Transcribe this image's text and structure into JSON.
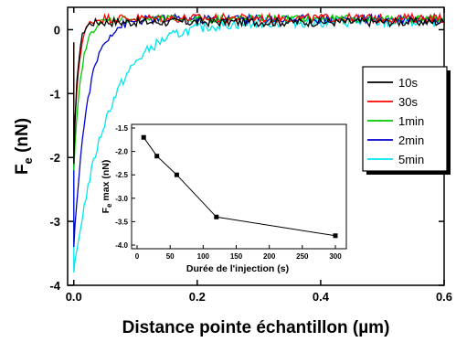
{
  "chart_data": [
    {
      "type": "line",
      "xlabel": "Distance pointe échantillon (µm)",
      "ylabel": {
        "main": "F",
        "sub": "e",
        "unit": " (nN)"
      },
      "xlim": [
        -0.01,
        0.6
      ],
      "ylim": [
        -4,
        0.35
      ],
      "x_ticks": [
        0.0,
        0.2,
        0.4,
        0.6
      ],
      "x_tick_labels": [
        "0.0",
        "0.2",
        "0.4",
        "0.6"
      ],
      "y_ticks": [
        0,
        -1,
        -2,
        -3,
        -4
      ],
      "y_tick_labels": [
        "0",
        "-1",
        "-2",
        "-3",
        "-4"
      ],
      "legend_position": "right",
      "series": [
        {
          "name": "10s",
          "color": "#000000",
          "min": -2.1,
          "end": 0.12,
          "tau": 0.006,
          "noise": 0.07
        },
        {
          "name": "30s",
          "color": "#ff0000",
          "min": -1.9,
          "end": 0.18,
          "tau": 0.008,
          "noise": 0.07
        },
        {
          "name": "1min",
          "color": "#00cc00",
          "min": -2.2,
          "end": 0.17,
          "tau": 0.012,
          "noise": 0.06
        },
        {
          "name": "2min",
          "color": "#0000cc",
          "min": -3.4,
          "end": 0.17,
          "tau": 0.022,
          "noise": 0.07
        },
        {
          "name": "5min",
          "color": "#00e5ee",
          "min": -3.8,
          "end": 0.12,
          "tau": 0.055,
          "noise": 0.08
        }
      ]
    },
    {
      "type": "line",
      "xlabel": "Durée de l'injection (s)",
      "ylabel": {
        "main": "F",
        "sub": "e",
        "unit": " max (nN)"
      },
      "xlim": [
        0,
        300
      ],
      "ylim": [
        -4.0,
        -1.5
      ],
      "x_ticks": [
        0,
        50,
        100,
        150,
        200,
        250,
        300
      ],
      "x_tick_labels": [
        "0",
        "50",
        "100",
        "150",
        "200",
        "250",
        "300"
      ],
      "y_ticks": [
        -1.5,
        -2.0,
        -2.5,
        -3.0,
        -3.5,
        -4.0
      ],
      "y_tick_labels": [
        "-1.5",
        "-2.0",
        "-2.5",
        "-3.0",
        "-3.5",
        "-4.0"
      ],
      "series": [
        {
          "x": [
            10,
            30,
            60,
            120,
            300
          ],
          "y": [
            -1.7,
            -2.1,
            -2.5,
            -3.4,
            -3.8
          ]
        }
      ]
    }
  ]
}
